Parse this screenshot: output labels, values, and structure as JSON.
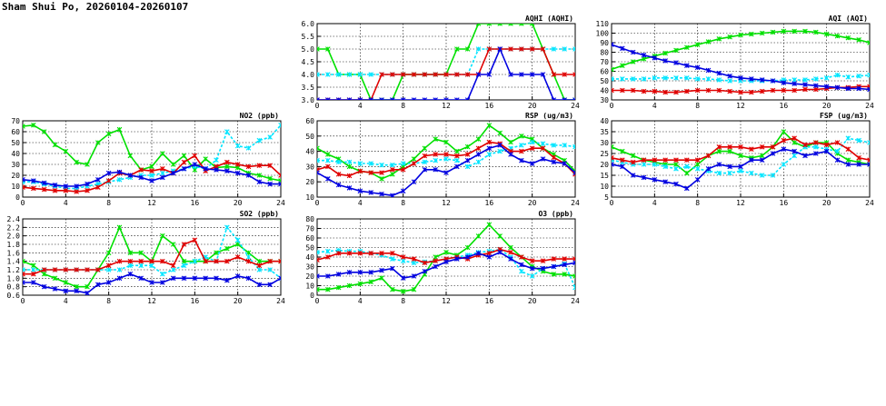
{
  "page": {
    "title": "Sham Shui Po, 20260104-20260107"
  },
  "colors": {
    "series_1": "#00e000",
    "series_2": "#00e5ff",
    "series_3": "#e00000",
    "series_4": "#0000e0"
  },
  "chart_data": [
    {
      "id": "aqhi",
      "type": "line",
      "title": "AQHI (AQHI)",
      "xlim": [
        0,
        24
      ],
      "xticks": [
        0,
        4,
        8,
        12,
        16,
        20,
        24
      ],
      "ylim": [
        3.0,
        6.0
      ],
      "yticks": [
        "3.0",
        "3.5",
        "4.0",
        "4.5",
        "5.0",
        "5.5",
        "6.0"
      ],
      "grid": true,
      "xlabel": "",
      "ylabel": "",
      "x": [
        0,
        1,
        2,
        3,
        4,
        5,
        6,
        7,
        8,
        9,
        10,
        11,
        12,
        13,
        14,
        15,
        16,
        17,
        18,
        19,
        20,
        21,
        22,
        23,
        24
      ],
      "series": [
        {
          "color": "#00e000",
          "values": [
            5,
            5,
            4,
            4,
            4,
            3,
            3,
            3,
            4,
            4,
            4,
            4,
            4,
            5,
            5,
            6,
            6,
            6,
            6,
            6,
            6,
            5,
            4,
            3,
            3
          ]
        },
        {
          "color": "#00e5ff",
          "values": [
            4,
            4,
            4,
            4,
            4,
            4,
            4,
            4,
            4,
            4,
            4,
            4,
            4,
            4,
            4,
            5,
            5,
            5,
            5,
            5,
            5,
            5,
            5,
            5,
            5
          ]
        },
        {
          "color": "#e00000",
          "values": [
            3,
            3,
            3,
            3,
            3,
            3,
            4,
            4,
            4,
            4,
            4,
            4,
            4,
            4,
            4,
            4,
            5,
            5,
            5,
            5,
            5,
            5,
            4,
            4,
            4
          ]
        },
        {
          "color": "#0000e0",
          "values": [
            3,
            3,
            3,
            3,
            3,
            3,
            3,
            3,
            3,
            3,
            3,
            3,
            3,
            3,
            3,
            4,
            4,
            5,
            4,
            4,
            4,
            4,
            3,
            3,
            3
          ]
        }
      ]
    },
    {
      "id": "aqi",
      "type": "line",
      "title": "AQI (AQI)",
      "xlim": [
        0,
        24
      ],
      "xticks": [
        0,
        4,
        8,
        12,
        16,
        20,
        24
      ],
      "ylim": [
        30,
        110
      ],
      "yticks": [
        "30",
        "40",
        "50",
        "60",
        "70",
        "80",
        "90",
        "100",
        "110"
      ],
      "grid": true,
      "xlabel": "",
      "ylabel": "",
      "x": [
        0,
        1,
        2,
        3,
        4,
        5,
        6,
        7,
        8,
        9,
        10,
        11,
        12,
        13,
        14,
        15,
        16,
        17,
        18,
        19,
        20,
        21,
        22,
        23,
        24
      ],
      "series": [
        {
          "color": "#00e000",
          "values": [
            62,
            66,
            70,
            73,
            76,
            79,
            82,
            85,
            88,
            91,
            94,
            96,
            98,
            99,
            100,
            101,
            102,
            102,
            102,
            101,
            99,
            97,
            95,
            93,
            90
          ]
        },
        {
          "color": "#00e5ff",
          "values": [
            52,
            52,
            52,
            52,
            53,
            53,
            53,
            53,
            52,
            52,
            51,
            50,
            50,
            50,
            50,
            50,
            51,
            51,
            51,
            52,
            53,
            56,
            54,
            55,
            56
          ]
        },
        {
          "color": "#e00000",
          "values": [
            40,
            40,
            40,
            39,
            39,
            38,
            38,
            39,
            40,
            40,
            40,
            39,
            38,
            38,
            39,
            40,
            40,
            40,
            41,
            41,
            42,
            43,
            43,
            44,
            44
          ]
        },
        {
          "color": "#0000e0",
          "values": [
            88,
            84,
            80,
            77,
            74,
            71,
            69,
            66,
            64,
            61,
            58,
            55,
            53,
            52,
            51,
            50,
            48,
            47,
            46,
            45,
            44,
            43,
            42,
            42,
            41
          ]
        }
      ]
    },
    {
      "id": "no2",
      "type": "line",
      "title": "NO2 (ppb)",
      "xlim": [
        0,
        24
      ],
      "xticks": [
        0,
        4,
        8,
        12,
        16,
        20,
        24
      ],
      "ylim": [
        0,
        70
      ],
      "yticks": [
        "0",
        "10",
        "20",
        "30",
        "40",
        "50",
        "60",
        "70"
      ],
      "grid": true,
      "xlabel": "",
      "ylabel": "",
      "x": [
        0,
        1,
        2,
        3,
        4,
        5,
        6,
        7,
        8,
        9,
        10,
        11,
        12,
        13,
        14,
        15,
        16,
        17,
        18,
        19,
        20,
        21,
        22,
        23,
        24
      ],
      "series": [
        {
          "color": "#00e000",
          "values": [
            65,
            66,
            60,
            48,
            42,
            32,
            30,
            50,
            58,
            62,
            38,
            25,
            28,
            40,
            30,
            38,
            25,
            35,
            27,
            28,
            27,
            22,
            20,
            17,
            15
          ]
        },
        {
          "color": "#00e5ff",
          "values": [
            14,
            14,
            12,
            10,
            8,
            8,
            10,
            12,
            14,
            16,
            18,
            20,
            20,
            22,
            24,
            26,
            28,
            26,
            34,
            60,
            47,
            45,
            52,
            55,
            66
          ]
        },
        {
          "color": "#e00000",
          "values": [
            9,
            8,
            7,
            6,
            6,
            5,
            6,
            9,
            15,
            22,
            20,
            25,
            24,
            26,
            22,
            32,
            38,
            24,
            28,
            32,
            30,
            28,
            29,
            29,
            20
          ]
        },
        {
          "color": "#0000e0",
          "values": [
            16,
            15,
            13,
            11,
            10,
            10,
            12,
            16,
            22,
            23,
            20,
            18,
            15,
            18,
            22,
            26,
            30,
            26,
            25,
            24,
            22,
            20,
            14,
            12,
            12
          ]
        }
      ]
    },
    {
      "id": "rsp",
      "type": "line",
      "title": "RSP (ug/m3)",
      "xlim": [
        0,
        24
      ],
      "xticks": [
        0,
        4,
        8,
        12,
        16,
        20,
        24
      ],
      "ylim": [
        10,
        60
      ],
      "yticks": [
        "10",
        "20",
        "30",
        "40",
        "50",
        "60"
      ],
      "grid": true,
      "xlabel": "",
      "ylabel": "",
      "x": [
        0,
        1,
        2,
        3,
        4,
        5,
        6,
        7,
        8,
        9,
        10,
        11,
        12,
        13,
        14,
        15,
        16,
        17,
        18,
        19,
        20,
        21,
        22,
        23,
        24
      ],
      "series": [
        {
          "color": "#00e000",
          "values": [
            42,
            38,
            35,
            30,
            27,
            26,
            22,
            25,
            30,
            35,
            42,
            48,
            46,
            40,
            43,
            48,
            57,
            52,
            46,
            50,
            48,
            42,
            38,
            34,
            27
          ]
        },
        {
          "color": "#00e5ff",
          "values": [
            34,
            34,
            33,
            33,
            32,
            32,
            31,
            31,
            32,
            32,
            33,
            34,
            35,
            34,
            30,
            33,
            38,
            40,
            42,
            44,
            46,
            45,
            44,
            44,
            43
          ]
        },
        {
          "color": "#e00000",
          "values": [
            28,
            30,
            25,
            24,
            27,
            26,
            26,
            28,
            28,
            32,
            37,
            38,
            38,
            37,
            38,
            42,
            46,
            45,
            40,
            40,
            42,
            42,
            36,
            32,
            25
          ]
        },
        {
          "color": "#0000e0",
          "values": [
            26,
            22,
            18,
            16,
            14,
            13,
            12,
            11,
            14,
            20,
            28,
            28,
            26,
            30,
            34,
            38,
            42,
            44,
            38,
            34,
            32,
            35,
            33,
            32,
            26
          ]
        }
      ]
    },
    {
      "id": "fsp",
      "type": "line",
      "title": "FSP (ug/m3)",
      "xlim": [
        0,
        24
      ],
      "xticks": [
        0,
        4,
        8,
        12,
        16,
        20,
        24
      ],
      "ylim": [
        5,
        40
      ],
      "yticks": [
        "5",
        "10",
        "15",
        "20",
        "25",
        "30",
        "35",
        "40"
      ],
      "grid": true,
      "xlabel": "",
      "ylabel": "",
      "x": [
        0,
        1,
        2,
        3,
        4,
        5,
        6,
        7,
        8,
        9,
        10,
        11,
        12,
        13,
        14,
        15,
        16,
        17,
        18,
        19,
        20,
        21,
        22,
        23,
        24
      ],
      "series": [
        {
          "color": "#00e000",
          "values": [
            28,
            26,
            24,
            22,
            21,
            20,
            20,
            16,
            20,
            24,
            26,
            26,
            24,
            23,
            24,
            28,
            35,
            30,
            28,
            30,
            30,
            25,
            22,
            21,
            20
          ]
        },
        {
          "color": "#00e5ff",
          "values": [
            22,
            21,
            20,
            20,
            20,
            19,
            18,
            19,
            18,
            17,
            16,
            16,
            17,
            16,
            15,
            15,
            20,
            24,
            28,
            28,
            27,
            26,
            32,
            31,
            30
          ]
        },
        {
          "color": "#e00000",
          "values": [
            23,
            22,
            21,
            22,
            22,
            22,
            22,
            22,
            22,
            24,
            28,
            28,
            28,
            27,
            28,
            28,
            31,
            32,
            29,
            30,
            29,
            30,
            27,
            23,
            22
          ]
        },
        {
          "color": "#0000e0",
          "values": [
            20,
            19,
            15,
            14,
            13,
            12,
            11,
            9,
            13,
            18,
            20,
            19,
            19,
            22,
            22,
            25,
            27,
            26,
            24,
            25,
            26,
            22,
            20,
            20,
            20
          ]
        }
      ]
    },
    {
      "id": "so2",
      "type": "line",
      "title": "SO2 (ppb)",
      "xlim": [
        0,
        24
      ],
      "xticks": [
        0,
        4,
        8,
        12,
        16,
        20,
        24
      ],
      "ylim": [
        0.6,
        2.4
      ],
      "yticks": [
        "0.6",
        "0.8",
        "1.0",
        "1.2",
        "1.4",
        "1.6",
        "1.8",
        "2.0",
        "2.2",
        "2.4"
      ],
      "grid": true,
      "xlabel": "",
      "ylabel": "",
      "x": [
        0,
        1,
        2,
        3,
        4,
        5,
        6,
        7,
        8,
        9,
        10,
        11,
        12,
        13,
        14,
        15,
        16,
        17,
        18,
        19,
        20,
        21,
        22,
        23,
        24
      ],
      "series": [
        {
          "color": "#00e000",
          "values": [
            1.4,
            1.3,
            1.1,
            1.0,
            0.9,
            0.8,
            0.8,
            1.2,
            1.6,
            2.2,
            1.6,
            1.6,
            1.4,
            2.0,
            1.8,
            1.4,
            1.4,
            1.4,
            1.6,
            1.7,
            1.8,
            1.6,
            1.4,
            1.4,
            1.4
          ]
        },
        {
          "color": "#00e5ff",
          "values": [
            1.2,
            1.2,
            1.2,
            1.2,
            1.2,
            1.2,
            1.2,
            1.2,
            1.2,
            1.2,
            1.3,
            1.3,
            1.3,
            1.1,
            1.2,
            1.3,
            1.4,
            1.5,
            1.4,
            2.2,
            1.9,
            1.5,
            1.2,
            1.2,
            1.0
          ]
        },
        {
          "color": "#e00000",
          "values": [
            1.1,
            1.1,
            1.2,
            1.2,
            1.2,
            1.2,
            1.2,
            1.2,
            1.3,
            1.4,
            1.4,
            1.4,
            1.4,
            1.4,
            1.3,
            1.8,
            1.9,
            1.4,
            1.4,
            1.4,
            1.5,
            1.4,
            1.3,
            1.4,
            1.4
          ]
        },
        {
          "color": "#0000e0",
          "values": [
            0.9,
            0.9,
            0.8,
            0.75,
            0.7,
            0.7,
            0.65,
            0.85,
            0.9,
            1.0,
            1.1,
            1.0,
            0.9,
            0.9,
            1.0,
            1.0,
            1.0,
            1.0,
            1.0,
            0.95,
            1.05,
            1.0,
            0.85,
            0.85,
            1.0
          ]
        }
      ]
    },
    {
      "id": "o3",
      "type": "line",
      "title": "O3 (ppb)",
      "xlim": [
        0,
        24
      ],
      "xticks": [
        0,
        4,
        8,
        12,
        16,
        20,
        24
      ],
      "ylim": [
        0,
        80
      ],
      "yticks": [
        "0",
        "10",
        "20",
        "30",
        "40",
        "50",
        "60",
        "70",
        "80"
      ],
      "grid": true,
      "xlabel": "",
      "ylabel": "",
      "x": [
        0,
        1,
        2,
        3,
        4,
        5,
        6,
        7,
        8,
        9,
        10,
        11,
        12,
        13,
        14,
        15,
        16,
        17,
        18,
        19,
        20,
        21,
        22,
        23,
        24
      ],
      "series": [
        {
          "color": "#00e000",
          "values": [
            6,
            6,
            8,
            10,
            12,
            14,
            18,
            6,
            4,
            6,
            22,
            40,
            45,
            42,
            50,
            62,
            74,
            62,
            50,
            40,
            30,
            25,
            22,
            22,
            20
          ]
        },
        {
          "color": "#00e5ff",
          "values": [
            45,
            46,
            47,
            46,
            46,
            44,
            42,
            38,
            36,
            34,
            35,
            36,
            38,
            40,
            42,
            45,
            46,
            48,
            40,
            25,
            20,
            28,
            30,
            33,
            8
          ]
        },
        {
          "color": "#e00000",
          "values": [
            37,
            40,
            44,
            44,
            44,
            44,
            44,
            44,
            40,
            38,
            34,
            36,
            38,
            40,
            38,
            42,
            44,
            48,
            45,
            40,
            36,
            36,
            38,
            38,
            38
          ]
        },
        {
          "color": "#0000e0",
          "values": [
            20,
            20,
            22,
            24,
            24,
            24,
            26,
            28,
            18,
            20,
            25,
            30,
            35,
            38,
            40,
            44,
            40,
            45,
            38,
            32,
            28,
            28,
            30,
            32,
            34
          ]
        }
      ]
    }
  ]
}
